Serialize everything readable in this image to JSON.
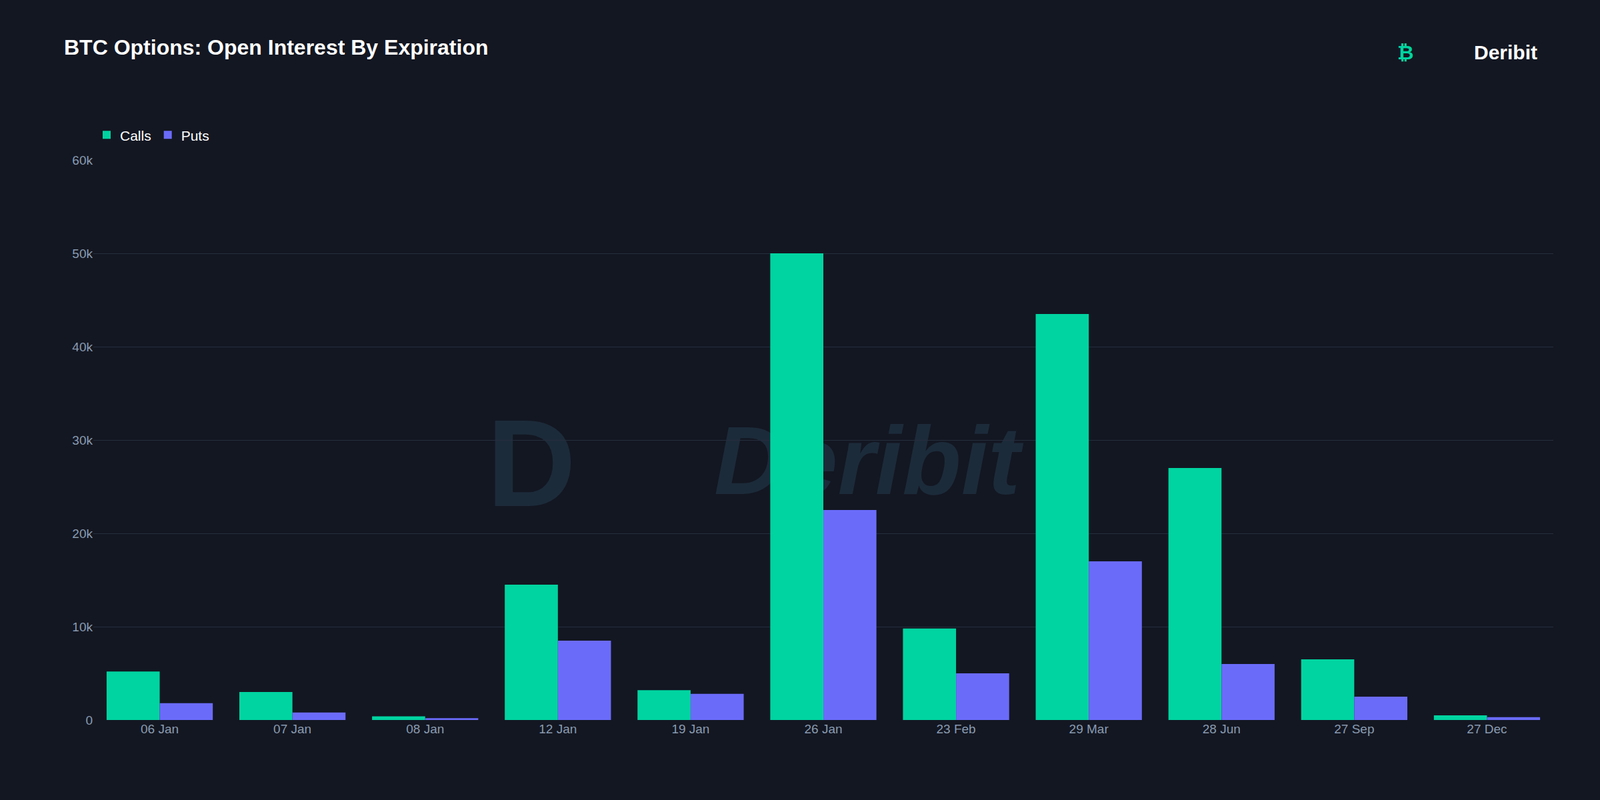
{
  "chart_data": {
    "type": "bar",
    "title": "BTC Options: Open Interest By Expiration",
    "categories": [
      "06 Jan",
      "07 Jan",
      "08 Jan",
      "12 Jan",
      "19 Jan",
      "26 Jan",
      "23 Feb",
      "29 Mar",
      "28 Jun",
      "27 Sep",
      "27 Dec"
    ],
    "series": [
      {
        "name": "Calls",
        "color": "#00d4a0",
        "values": [
          5200,
          3000,
          400,
          14500,
          3200,
          50000,
          9800,
          43500,
          27000,
          6500,
          500
        ]
      },
      {
        "name": "Puts",
        "color": "#6b6bfa",
        "values": [
          1800,
          800,
          200,
          8500,
          2800,
          22500,
          5000,
          17000,
          6000,
          2500,
          300
        ]
      }
    ],
    "ylim": [
      0,
      60000
    ],
    "yticks": [
      0,
      {
        "value": 10000,
        "label": "10k"
      },
      {
        "value": 20000,
        "label": "20k"
      },
      {
        "value": 30000,
        "label": "30k"
      },
      {
        "value": 40000,
        "label": "40k"
      },
      {
        "value": 50000,
        "label": "50k"
      },
      {
        "value": 60000,
        "label": "60k"
      }
    ],
    "grid": true,
    "legend": "upper left",
    "annotations": [
      "D",
      "Deribit",
      "₿",
      "Deribit"
    ]
  }
}
